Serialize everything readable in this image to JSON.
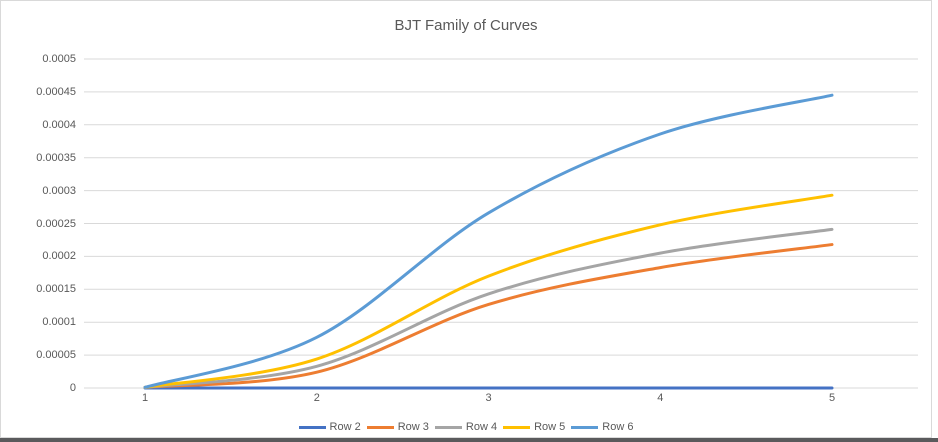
{
  "window": {
    "background": "#ffffff",
    "frame_border_color": "#d9d9d9",
    "bottom_bar_color": "#5a5a5c"
  },
  "chart_data": {
    "type": "line",
    "title": "BJT Family of Curves",
    "smoothed": true,
    "grid": "horizontal-on",
    "legend_position": "bottom",
    "text_color": "#595959",
    "gridline_color": "#d9d9d9",
    "x": [
      1,
      2,
      3,
      4,
      5
    ],
    "x_tick_labels": [
      "1",
      "2",
      "3",
      "4",
      "5"
    ],
    "y_tick_labels": [
      "0",
      "0.00005",
      "0.0001",
      "0.00015",
      "0.0002",
      "0.00025",
      "0.0003",
      "0.00035",
      "0.0004",
      "0.00045",
      "0.0005"
    ],
    "y_tick_step": 5e-05,
    "ylim": [
      0,
      0.0005
    ],
    "series": [
      {
        "name": "Row 2",
        "color": "#4472C4",
        "values": [
          0,
          0,
          0,
          0,
          0
        ]
      },
      {
        "name": "Row 3",
        "color": "#ED7D31",
        "values": [
          1e-06,
          2.4e-05,
          0.000127,
          0.000183,
          0.000218
        ]
      },
      {
        "name": "Row 4",
        "color": "#A5A5A5",
        "values": [
          1e-06,
          3.3e-05,
          0.000143,
          0.000205,
          0.000241
        ]
      },
      {
        "name": "Row 5",
        "color": "#FFC000",
        "values": [
          1e-06,
          4.4e-05,
          0.00017,
          0.000248,
          0.000293
        ]
      },
      {
        "name": "Row 6",
        "color": "#5B9BD5",
        "values": [
          1e-06,
          7.7e-05,
          0.000266,
          0.000386,
          0.000445
        ]
      }
    ]
  }
}
